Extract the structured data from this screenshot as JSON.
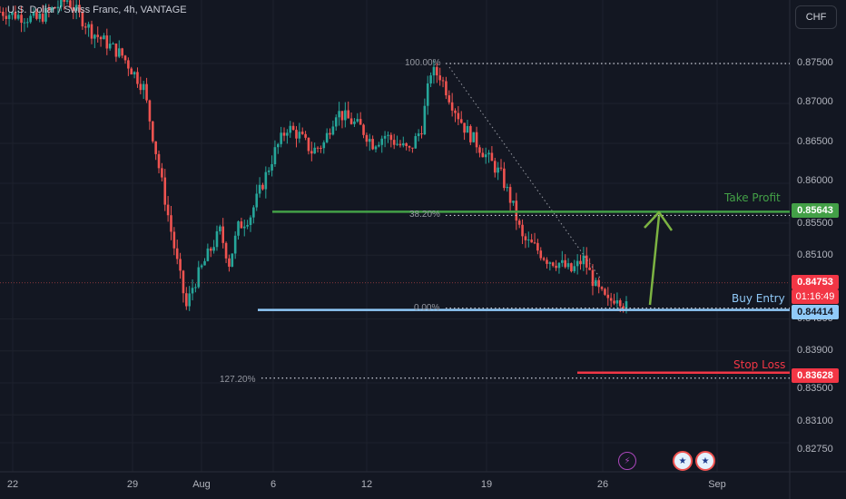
{
  "header": {
    "title": "U.S. Dollar / Swiss Franc, 4h, VANTAGE",
    "currency_button": "CHF"
  },
  "colors": {
    "background": "#131722",
    "bull": "#26a69a",
    "bear": "#ef5350",
    "take_profit": "#43a047",
    "stop_loss": "#f23645",
    "buy_entry": "#90caf9",
    "arrow": "#7cb342"
  },
  "annotations": {
    "take_profit_label": "Take Profit",
    "take_profit_price": "0.85643",
    "buy_entry_label": "Buy Entry",
    "buy_entry_price": "0.84414",
    "stop_loss_label": "Stop Loss",
    "stop_loss_price": "0.83628",
    "current_price": "0.84753",
    "countdown": "01:16:49"
  },
  "fib": {
    "level_100": "100.00%",
    "level_382": "38.20%",
    "level_0": "0.00%",
    "level_1272": "127.20%"
  },
  "events": {
    "lightning_icon": "lightning-icon",
    "flag_icon_1": "us-flag-icon",
    "flag_icon_2": "us-flag-icon"
  },
  "chart_data": {
    "type": "candlestick",
    "price_ticks": [
      "0.87500",
      "0.87000",
      "0.86500",
      "0.86000",
      "0.85500",
      "0.85100",
      "0.84300",
      "0.83900",
      "0.83500",
      "0.83100",
      "0.82750"
    ],
    "date_ticks": [
      "22",
      "29",
      "Aug",
      "6",
      "12",
      "19",
      "26",
      "Sep"
    ],
    "ylim": [
      0.8258,
      0.8818
    ],
    "levels": {
      "take_profit": 0.85643,
      "buy_entry": 0.84414,
      "stop_loss": 0.83628,
      "current": 0.84753,
      "fib_100": 0.875,
      "fib_382": 0.85643,
      "fib_0": 0.84414,
      "fib_1272": 0.83628
    },
    "path": [
      [
        0,
        0.8815
      ],
      [
        12,
        0.8805
      ],
      [
        22,
        0.883
      ],
      [
        30,
        0.879
      ],
      [
        40,
        0.876
      ],
      [
        47,
        0.872
      ],
      [
        53,
        0.86
      ],
      [
        58,
        0.85
      ],
      [
        61,
        0.8445
      ],
      [
        63,
        0.847
      ],
      [
        68,
        0.851
      ],
      [
        72,
        0.854
      ],
      [
        75,
        0.85
      ],
      [
        78,
        0.8545
      ],
      [
        82,
        0.856
      ],
      [
        86,
        0.86
      ],
      [
        90,
        0.864
      ],
      [
        94,
        0.867
      ],
      [
        98,
        0.866
      ],
      [
        102,
        0.864
      ],
      [
        106,
        0.865
      ],
      [
        110,
        0.869
      ],
      [
        114,
        0.868
      ],
      [
        118,
        0.867
      ],
      [
        122,
        0.865
      ],
      [
        126,
        0.866
      ],
      [
        130,
        0.865
      ],
      [
        134,
        0.864
      ],
      [
        138,
        0.867
      ],
      [
        141,
        0.874
      ],
      [
        144,
        0.8735
      ],
      [
        148,
        0.87
      ],
      [
        152,
        0.867
      ],
      [
        156,
        0.865
      ],
      [
        160,
        0.863
      ],
      [
        164,
        0.861
      ],
      [
        168,
        0.857
      ],
      [
        171,
        0.853
      ],
      [
        175,
        0.852
      ],
      [
        179,
        0.8505
      ],
      [
        183,
        0.85
      ],
      [
        187,
        0.849
      ],
      [
        191,
        0.8505
      ],
      [
        195,
        0.847
      ],
      [
        199,
        0.845
      ],
      [
        202,
        0.846
      ],
      [
        205,
        0.8445
      ]
    ]
  }
}
